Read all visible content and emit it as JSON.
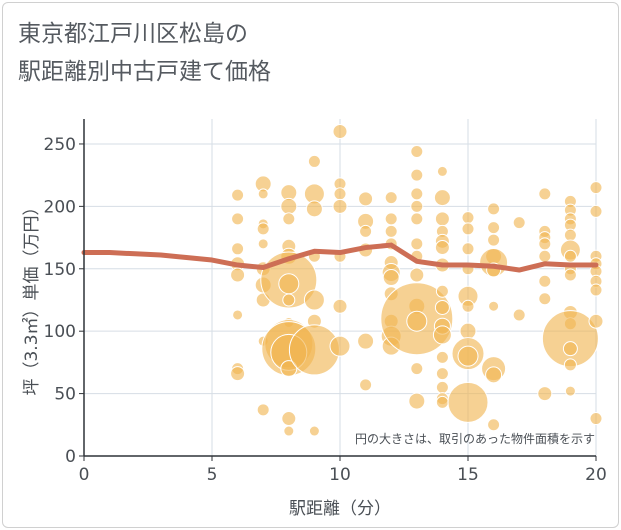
{
  "title_line1": "東京都江戸川区松島の",
  "title_line2": "駅距離別中古戸建て価格",
  "note": "円の大きさは、取引のあった物件面積を示す",
  "colors": {
    "bubble": "#f0b450",
    "line": "#cd6e55",
    "grid": "#d6dde5",
    "text": "#4a4f55"
  },
  "chart_data": {
    "type": "scatter",
    "xlabel": "駅距離（分）",
    "ylabel": "坪（3.3㎡）単価（万円）",
    "xlim": [
      0,
      20
    ],
    "ylim": [
      0,
      270
    ],
    "xticks": [
      "0",
      "5",
      "10",
      "15",
      "20"
    ],
    "yticks": [
      "0",
      "50",
      "100",
      "150",
      "200",
      "250"
    ],
    "grid": true,
    "bubbles": [
      {
        "x": 6,
        "y": 209,
        "s": 6
      },
      {
        "x": 6,
        "y": 190,
        "s": 6
      },
      {
        "x": 6,
        "y": 166,
        "s": 6
      },
      {
        "x": 6,
        "y": 154,
        "s": 7
      },
      {
        "x": 6,
        "y": 145,
        "s": 7
      },
      {
        "x": 6,
        "y": 113,
        "s": 5
      },
      {
        "x": 6,
        "y": 70,
        "s": 6
      },
      {
        "x": 6,
        "y": 66,
        "s": 7
      },
      {
        "x": 7,
        "y": 218,
        "s": 8
      },
      {
        "x": 7,
        "y": 210,
        "s": 5
      },
      {
        "x": 7,
        "y": 186,
        "s": 5
      },
      {
        "x": 7,
        "y": 182,
        "s": 6
      },
      {
        "x": 7,
        "y": 170,
        "s": 5
      },
      {
        "x": 7,
        "y": 150,
        "s": 7
      },
      {
        "x": 7,
        "y": 137,
        "s": 8
      },
      {
        "x": 7,
        "y": 125,
        "s": 7
      },
      {
        "x": 7,
        "y": 92,
        "s": 5
      },
      {
        "x": 7,
        "y": 37,
        "s": 6
      },
      {
        "x": 8,
        "y": 211,
        "s": 8
      },
      {
        "x": 8,
        "y": 200,
        "s": 8
      },
      {
        "x": 8,
        "y": 190,
        "s": 6
      },
      {
        "x": 8,
        "y": 168,
        "s": 7
      },
      {
        "x": 8,
        "y": 160,
        "s": 8
      },
      {
        "x": 8,
        "y": 141,
        "s": 28
      },
      {
        "x": 8,
        "y": 138,
        "s": 10
      },
      {
        "x": 8,
        "y": 125,
        "s": 6
      },
      {
        "x": 8,
        "y": 107,
        "s": 5
      },
      {
        "x": 8,
        "y": 90,
        "s": 24
      },
      {
        "x": 8,
        "y": 86,
        "s": 27
      },
      {
        "x": 8,
        "y": 83,
        "s": 18
      },
      {
        "x": 8,
        "y": 70,
        "s": 8
      },
      {
        "x": 8,
        "y": 30,
        "s": 7
      },
      {
        "x": 8,
        "y": 20,
        "s": 5
      },
      {
        "x": 9,
        "y": 236,
        "s": 6
      },
      {
        "x": 9,
        "y": 210,
        "s": 10
      },
      {
        "x": 9,
        "y": 198,
        "s": 8
      },
      {
        "x": 9,
        "y": 160,
        "s": 6
      },
      {
        "x": 9,
        "y": 125,
        "s": 10
      },
      {
        "x": 9,
        "y": 108,
        "s": 7
      },
      {
        "x": 9,
        "y": 85,
        "s": 25
      },
      {
        "x": 9,
        "y": 20,
        "s": 5
      },
      {
        "x": 10,
        "y": 260,
        "s": 7
      },
      {
        "x": 10,
        "y": 218,
        "s": 6
      },
      {
        "x": 10,
        "y": 210,
        "s": 6
      },
      {
        "x": 10,
        "y": 200,
        "s": 7
      },
      {
        "x": 10,
        "y": 160,
        "s": 6
      },
      {
        "x": 10,
        "y": 120,
        "s": 7
      },
      {
        "x": 10,
        "y": 88,
        "s": 10
      },
      {
        "x": 11,
        "y": 206,
        "s": 7
      },
      {
        "x": 11,
        "y": 188,
        "s": 8
      },
      {
        "x": 11,
        "y": 180,
        "s": 6
      },
      {
        "x": 11,
        "y": 165,
        "s": 7
      },
      {
        "x": 11,
        "y": 92,
        "s": 8
      },
      {
        "x": 11,
        "y": 57,
        "s": 6
      },
      {
        "x": 12,
        "y": 207,
        "s": 6
      },
      {
        "x": 12,
        "y": 190,
        "s": 6
      },
      {
        "x": 12,
        "y": 180,
        "s": 6
      },
      {
        "x": 12,
        "y": 170,
        "s": 6
      },
      {
        "x": 12,
        "y": 155,
        "s": 7
      },
      {
        "x": 12,
        "y": 147,
        "s": 9
      },
      {
        "x": 12,
        "y": 143,
        "s": 8
      },
      {
        "x": 12,
        "y": 130,
        "s": 7
      },
      {
        "x": 12,
        "y": 108,
        "s": 7
      },
      {
        "x": 12,
        "y": 96,
        "s": 10
      },
      {
        "x": 12,
        "y": 88,
        "s": 9
      },
      {
        "x": 13,
        "y": 244,
        "s": 6
      },
      {
        "x": 13,
        "y": 225,
        "s": 6
      },
      {
        "x": 13,
        "y": 210,
        "s": 6
      },
      {
        "x": 13,
        "y": 200,
        "s": 6
      },
      {
        "x": 13,
        "y": 190,
        "s": 6
      },
      {
        "x": 13,
        "y": 170,
        "s": 6
      },
      {
        "x": 13,
        "y": 160,
        "s": 6
      },
      {
        "x": 13,
        "y": 145,
        "s": 7
      },
      {
        "x": 13,
        "y": 120,
        "s": 8
      },
      {
        "x": 13,
        "y": 110,
        "s": 36
      },
      {
        "x": 13,
        "y": 108,
        "s": 10
      },
      {
        "x": 13,
        "y": 70,
        "s": 6
      },
      {
        "x": 13,
        "y": 44,
        "s": 8
      },
      {
        "x": 14,
        "y": 228,
        "s": 5
      },
      {
        "x": 14,
        "y": 207,
        "s": 8
      },
      {
        "x": 14,
        "y": 190,
        "s": 7
      },
      {
        "x": 14,
        "y": 180,
        "s": 6
      },
      {
        "x": 14,
        "y": 172,
        "s": 7
      },
      {
        "x": 14,
        "y": 167,
        "s": 7
      },
      {
        "x": 14,
        "y": 153,
        "s": 7
      },
      {
        "x": 14,
        "y": 132,
        "s": 6
      },
      {
        "x": 14,
        "y": 119,
        "s": 7
      },
      {
        "x": 14,
        "y": 104,
        "s": 8
      },
      {
        "x": 14,
        "y": 97,
        "s": 9
      },
      {
        "x": 14,
        "y": 79,
        "s": 6
      },
      {
        "x": 14,
        "y": 66,
        "s": 6
      },
      {
        "x": 14,
        "y": 55,
        "s": 6
      },
      {
        "x": 14,
        "y": 46,
        "s": 6
      },
      {
        "x": 14,
        "y": 43,
        "s": 6
      },
      {
        "x": 15,
        "y": 191,
        "s": 6
      },
      {
        "x": 15,
        "y": 182,
        "s": 6
      },
      {
        "x": 15,
        "y": 166,
        "s": 6
      },
      {
        "x": 15,
        "y": 150,
        "s": 6
      },
      {
        "x": 15,
        "y": 128,
        "s": 10
      },
      {
        "x": 15,
        "y": 120,
        "s": 6
      },
      {
        "x": 15,
        "y": 100,
        "s": 8
      },
      {
        "x": 15,
        "y": 82,
        "s": 16
      },
      {
        "x": 15,
        "y": 80,
        "s": 10
      },
      {
        "x": 15,
        "y": 43,
        "s": 20
      },
      {
        "x": 16,
        "y": 198,
        "s": 6
      },
      {
        "x": 16,
        "y": 183,
        "s": 6
      },
      {
        "x": 16,
        "y": 173,
        "s": 6
      },
      {
        "x": 16,
        "y": 160,
        "s": 8
      },
      {
        "x": 16,
        "y": 155,
        "s": 14
      },
      {
        "x": 16,
        "y": 149,
        "s": 7
      },
      {
        "x": 16,
        "y": 120,
        "s": 5
      },
      {
        "x": 16,
        "y": 70,
        "s": 12
      },
      {
        "x": 16,
        "y": 65,
        "s": 8
      },
      {
        "x": 16,
        "y": 25,
        "s": 6
      },
      {
        "x": 17,
        "y": 187,
        "s": 6
      },
      {
        "x": 17,
        "y": 113,
        "s": 6
      },
      {
        "x": 18,
        "y": 210,
        "s": 6
      },
      {
        "x": 18,
        "y": 180,
        "s": 6
      },
      {
        "x": 18,
        "y": 175,
        "s": 6
      },
      {
        "x": 18,
        "y": 170,
        "s": 6
      },
      {
        "x": 18,
        "y": 160,
        "s": 6
      },
      {
        "x": 18,
        "y": 140,
        "s": 6
      },
      {
        "x": 18,
        "y": 126,
        "s": 6
      },
      {
        "x": 18,
        "y": 50,
        "s": 7
      },
      {
        "x": 19,
        "y": 204,
        "s": 6
      },
      {
        "x": 19,
        "y": 197,
        "s": 6
      },
      {
        "x": 19,
        "y": 190,
        "s": 6
      },
      {
        "x": 19,
        "y": 185,
        "s": 6
      },
      {
        "x": 19,
        "y": 177,
        "s": 6
      },
      {
        "x": 19,
        "y": 165,
        "s": 10
      },
      {
        "x": 19,
        "y": 160,
        "s": 6
      },
      {
        "x": 19,
        "y": 150,
        "s": 6
      },
      {
        "x": 19,
        "y": 145,
        "s": 6
      },
      {
        "x": 19,
        "y": 115,
        "s": 7
      },
      {
        "x": 19,
        "y": 106,
        "s": 6
      },
      {
        "x": 19,
        "y": 94,
        "s": 28
      },
      {
        "x": 19,
        "y": 86,
        "s": 7
      },
      {
        "x": 19,
        "y": 73,
        "s": 6
      },
      {
        "x": 19,
        "y": 52,
        "s": 5
      },
      {
        "x": 20,
        "y": 215,
        "s": 6
      },
      {
        "x": 20,
        "y": 196,
        "s": 6
      },
      {
        "x": 20,
        "y": 160,
        "s": 6
      },
      {
        "x": 20,
        "y": 154,
        "s": 6
      },
      {
        "x": 20,
        "y": 148,
        "s": 6
      },
      {
        "x": 20,
        "y": 140,
        "s": 6
      },
      {
        "x": 20,
        "y": 133,
        "s": 6
      },
      {
        "x": 20,
        "y": 108,
        "s": 7
      },
      {
        "x": 20,
        "y": 30,
        "s": 6
      }
    ],
    "trend": {
      "x": [
        0,
        1,
        2,
        3,
        4,
        5,
        6,
        7,
        8,
        9,
        10,
        11,
        12,
        13,
        14,
        15,
        16,
        17,
        18,
        19,
        20
      ],
      "y": [
        163,
        163,
        162,
        161,
        159,
        157,
        153,
        151,
        158,
        164,
        163,
        167,
        169,
        156,
        153,
        153,
        152,
        149,
        154,
        153,
        153
      ]
    }
  }
}
